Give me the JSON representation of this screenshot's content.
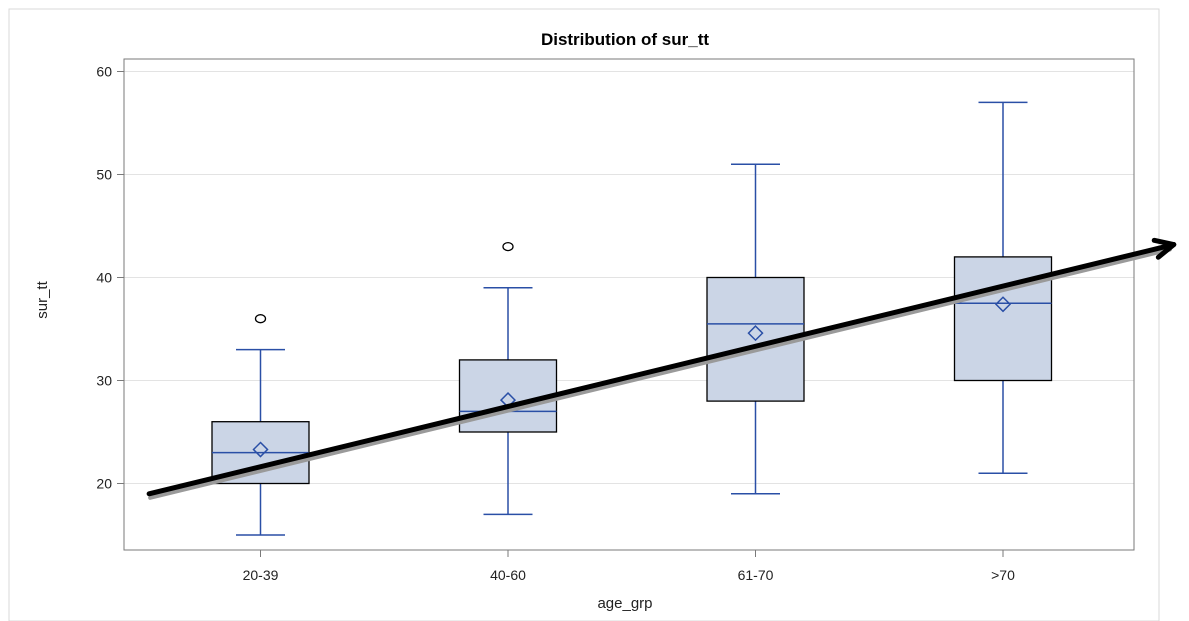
{
  "chart_data": {
    "type": "boxplot",
    "title": "Distribution of sur_tt",
    "xlabel": "age_grp",
    "ylabel": "sur_tt",
    "categories": [
      "20-39",
      "40-60",
      "61-70",
      ">70"
    ],
    "ylim": [
      14,
      61
    ],
    "yticks": [
      20,
      30,
      40,
      50,
      60
    ],
    "grid": true,
    "boxes": [
      {
        "category": "20-39",
        "min": 15,
        "q1": 20,
        "median": 23,
        "mean": 23.3,
        "q3": 26,
        "max": 33,
        "outliers": [
          36
        ]
      },
      {
        "category": "40-60",
        "min": 17,
        "q1": 25,
        "median": 27,
        "mean": 28.1,
        "q3": 32,
        "max": 39,
        "outliers": [
          43
        ]
      },
      {
        "category": "61-70",
        "min": 19,
        "q1": 28,
        "median": 35.5,
        "mean": 34.6,
        "q3": 40,
        "max": 51,
        "outliers": []
      },
      {
        "category": ">70",
        "min": 21,
        "q1": 30,
        "median": 37.5,
        "mean": 37.4,
        "q3": 42,
        "max": 57,
        "outliers": []
      }
    ],
    "trend_arrow": {
      "from": {
        "category": "20-39",
        "y": 19,
        "offset": -0.75
      },
      "to": {
        "category": ">70",
        "y": 43.2,
        "offset": 1.15
      }
    },
    "colors": {
      "box_fill": "#cbd5e6",
      "box_border": "#000000",
      "whisker": "#2a4fa6",
      "median": "#2a4fa6",
      "mean_marker": "#2a4fa6",
      "grid": "#e3e3e3",
      "arrow": "#000000",
      "arrow_shadow": "#9a9a9a"
    }
  }
}
